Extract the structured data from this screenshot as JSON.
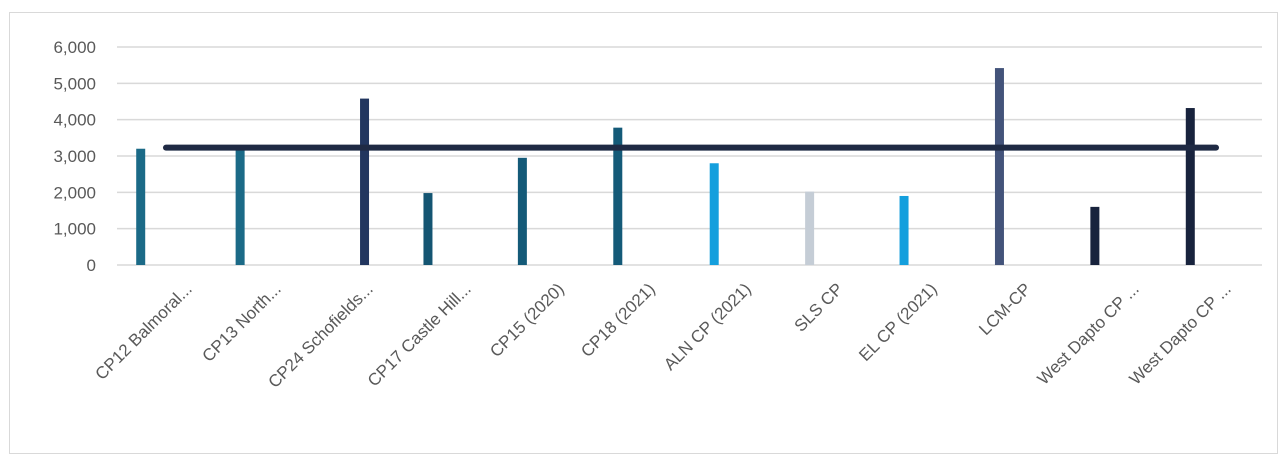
{
  "chart_data": {
    "type": "bar",
    "categories": [
      "CP12 Balmoral...",
      "CP13 North...",
      "CP24 Schofields...",
      "CP17 Castle Hill...",
      "CP15 (2020)",
      "CP18 (2021)",
      "ALN CP (2021)",
      "SLS CP",
      "EL CP (2021)",
      "LCM-CP",
      "West Dapto CP ...",
      "West Dapto CP ..."
    ],
    "series": [
      {
        "values": [
          3200,
          3200,
          null,
          null,
          2950,
          3780,
          null,
          null,
          null,
          null,
          null,
          null
        ],
        "color": "#1b5e7e"
      },
      {
        "values": [
          null,
          null,
          null,
          1980,
          null,
          null,
          2800,
          2020,
          1900,
          null,
          null,
          null
        ],
        "color": "#1a9ad6"
      },
      {
        "values": [
          null,
          null,
          4580,
          null,
          null,
          null,
          null,
          null,
          null,
          5420,
          1600,
          4320
        ],
        "color": "#1f2f55"
      }
    ],
    "bar_colors": [
      "#1b6a87",
      "#1b6a87",
      "#22365f",
      "#145572",
      "#145a78",
      "#145a78",
      "#149fdd",
      "#c5cdd6",
      "#149fdd",
      "#43537a",
      "#18233d",
      "#18233d"
    ],
    "average_line": {
      "value": 3230,
      "color": "#1f2a44"
    },
    "yticks": [
      "0",
      "1,000",
      "2,000",
      "3,000",
      "4,000",
      "5,000",
      "6,000"
    ],
    "ylim": [
      0,
      6000
    ],
    "grid": true,
    "title": "",
    "xlabel": "",
    "ylabel": ""
  }
}
